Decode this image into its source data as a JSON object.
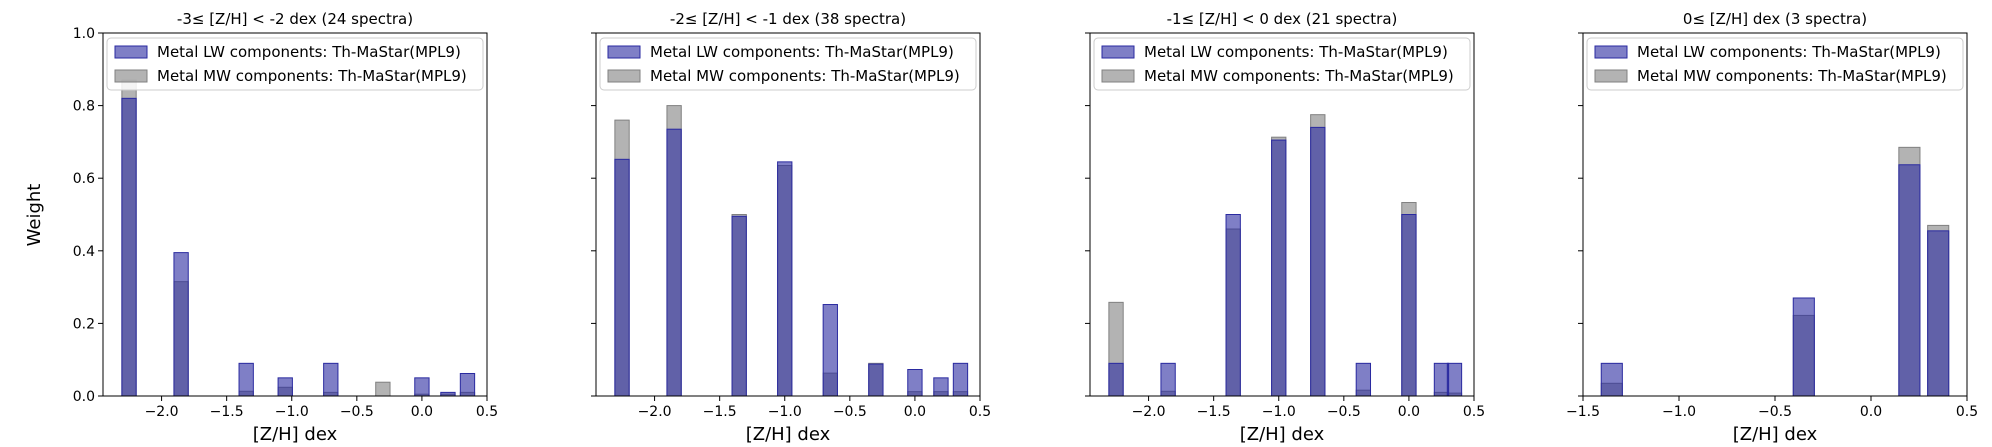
{
  "figure": {
    "ylabel": "Weight"
  },
  "legend": {
    "lw_label": "Metal LW components: Th-MaStar(MPL9)",
    "mw_label": "Metal MW components: Th-MaStar(MPL9)",
    "lw_color": "#2a2aa0",
    "mw_color": "#808080"
  },
  "chart_data": [
    {
      "type": "bar",
      "title": "-3≤ [Z/H] < -2 dex (24 spectra)",
      "xlabel": "[Z/H] dex",
      "ylabel": "Weight",
      "xlim": [
        -2.45,
        0.5
      ],
      "ylim": [
        0,
        1.0
      ],
      "xticks": [
        -2.0,
        -1.5,
        -1.0,
        -0.5,
        0.0,
        0.5
      ],
      "xtick_labels": [
        "−2.0",
        "−1.5",
        "−1.0",
        "−0.5",
        "0.0",
        "0.5"
      ],
      "yticks": [
        0.0,
        0.2,
        0.4,
        0.6,
        0.8,
        1.0
      ],
      "ytick_labels": [
        "0.0",
        "0.2",
        "0.4",
        "0.6",
        "0.8",
        "1.0"
      ],
      "bin_width": 0.11,
      "x": [
        -2.25,
        -1.85,
        -1.35,
        -1.05,
        -0.7,
        -0.3,
        0.0,
        0.2,
        0.35
      ],
      "series": [
        {
          "name": "Metal LW components: Th-MaStar(MPL9)",
          "values": [
            0.82,
            0.395,
            0.09,
            0.05,
            0.09,
            0.0,
            0.05,
            0.01,
            0.062
          ]
        },
        {
          "name": "Metal MW components: Th-MaStar(MPL9)",
          "values": [
            0.87,
            0.315,
            0.013,
            0.024,
            0.01,
            0.038,
            0.005,
            0.005,
            0.01
          ]
        }
      ]
    },
    {
      "type": "bar",
      "title": "-2≤ [Z/H] < -1 dex (38 spectra)",
      "xlabel": "[Z/H] dex",
      "ylabel": "",
      "xlim": [
        -2.45,
        0.5
      ],
      "ylim": [
        0,
        1.0
      ],
      "xticks": [
        -2.0,
        -1.5,
        -1.0,
        -0.5,
        0.0,
        0.5
      ],
      "xtick_labels": [
        "−2.0",
        "−1.5",
        "−1.0",
        "−0.5",
        "0.0",
        "0.5"
      ],
      "yticks": [
        0.0,
        0.2,
        0.4,
        0.6,
        0.8,
        1.0
      ],
      "ytick_labels": [],
      "bin_width": 0.11,
      "x": [
        -2.25,
        -1.85,
        -1.35,
        -1.0,
        -0.65,
        -0.3,
        0.0,
        0.2,
        0.35
      ],
      "series": [
        {
          "name": "Metal LW components: Th-MaStar(MPL9)",
          "values": [
            0.652,
            0.735,
            0.495,
            0.645,
            0.252,
            0.088,
            0.073,
            0.05,
            0.09
          ]
        },
        {
          "name": "Metal MW components: Th-MaStar(MPL9)",
          "values": [
            0.76,
            0.8,
            0.5,
            0.635,
            0.063,
            0.09,
            0.012,
            0.012,
            0.012
          ]
        }
      ]
    },
    {
      "type": "bar",
      "title": "-1≤ [Z/H] < 0 dex (21 spectra)",
      "xlabel": "[Z/H] dex",
      "ylabel": "",
      "xlim": [
        -2.45,
        0.5
      ],
      "ylim": [
        0,
        1.0
      ],
      "xticks": [
        -2.0,
        -1.5,
        -1.0,
        -0.5,
        0.0,
        0.5
      ],
      "xtick_labels": [
        "−2.0",
        "−1.5",
        "−1.0",
        "−0.5",
        "0.0",
        "0.5"
      ],
      "yticks": [
        0.0,
        0.2,
        0.4,
        0.6,
        0.8,
        1.0
      ],
      "ytick_labels": [],
      "bin_width": 0.11,
      "x": [
        -2.25,
        -1.85,
        -1.35,
        -1.0,
        -0.7,
        -0.35,
        0.0,
        0.25,
        0.35
      ],
      "series": [
        {
          "name": "Metal LW components: Th-MaStar(MPL9)",
          "values": [
            0.09,
            0.09,
            0.5,
            0.705,
            0.74,
            0.09,
            0.5,
            0.09,
            0.09
          ]
        },
        {
          "name": "Metal MW components: Th-MaStar(MPL9)",
          "values": [
            0.258,
            0.013,
            0.46,
            0.713,
            0.775,
            0.016,
            0.533,
            0.01,
            0.008
          ]
        }
      ]
    },
    {
      "type": "bar",
      "title": "0≤ [Z/H] dex (3 spectra)",
      "xlabel": "[Z/H] dex",
      "ylabel": "",
      "xlim": [
        -1.5,
        0.5
      ],
      "ylim": [
        0,
        1.0
      ],
      "xticks": [
        -1.5,
        -1.0,
        -0.5,
        0.0,
        0.5
      ],
      "xtick_labels": [
        "−1.5",
        "−1.0",
        "−0.5",
        "0.0",
        "0.5"
      ],
      "yticks": [
        0.0,
        0.2,
        0.4,
        0.6,
        0.8,
        1.0
      ],
      "ytick_labels": [],
      "bin_width": 0.11,
      "x": [
        -1.35,
        -0.35,
        0.2,
        0.35
      ],
      "series": [
        {
          "name": "Metal LW components: Th-MaStar(MPL9)",
          "values": [
            0.09,
            0.27,
            0.637,
            0.455
          ]
        },
        {
          "name": "Metal MW components: Th-MaStar(MPL9)",
          "values": [
            0.035,
            0.222,
            0.685,
            0.47
          ]
        }
      ]
    }
  ]
}
